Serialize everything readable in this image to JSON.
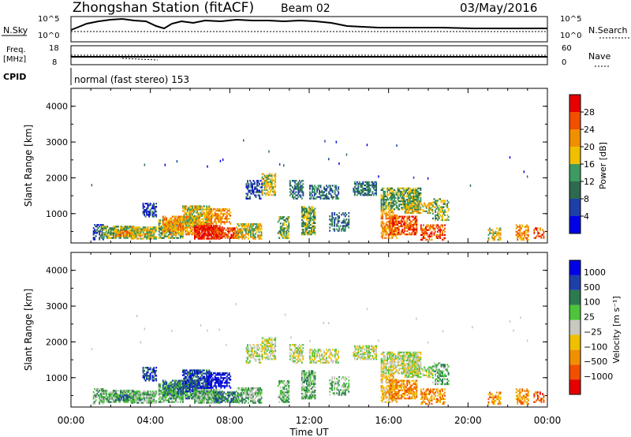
{
  "header": {
    "station": "Zhongshan Station (fitACF)",
    "beam": "Beam 02",
    "date": "03/May/2016"
  },
  "labels": {
    "nsky": "N.Sky",
    "nsearch": "N.Search",
    "freq_line1": "Freq.",
    "freq_line2": "[MHz]",
    "nave": "Nave",
    "cpid": "CPID",
    "cpid_value": "normal (fast stereo) 153",
    "nsky_top": "10^5",
    "nsky_bottom": "10^0",
    "freq_top": "18",
    "freq_bottom": "8",
    "nave_top": "60",
    "nave_bottom": "0"
  },
  "colors": {
    "power_scale": [
      "#0000e6",
      "#1f3fa8",
      "#2d6a4f",
      "#3d9a60",
      "#f0c000",
      "#f09000",
      "#f05000",
      "#e60000"
    ],
    "velocity_scale": [
      "#e60000",
      "#f05000",
      "#f09000",
      "#f0c000",
      "#c8c8c0",
      "#4dc43a",
      "#2d7a50",
      "#1f3fa8",
      "#0000e6"
    ]
  },
  "chart_data": [
    {
      "type": "heatmap",
      "name": "power",
      "ylabel": "Slant Range [km]",
      "yticks": [
        "1000",
        "2000",
        "3000",
        "4000"
      ],
      "ylim": [
        180,
        4500
      ],
      "xticks": [
        "00:00",
        "04:00",
        "08:00",
        "12:00",
        "16:00",
        "20:00",
        "00:00"
      ],
      "xlim_hours": [
        0,
        24
      ],
      "colorbar": {
        "label": "Power [dB]",
        "ticks": [
          "4",
          "8",
          "12",
          "16",
          "20",
          "24",
          "28"
        ],
        "range": [
          0,
          32
        ]
      }
    },
    {
      "type": "heatmap",
      "name": "velocity",
      "ylabel": "Slant Range [km]",
      "yticks": [
        "1000",
        "2000",
        "3000",
        "4000"
      ],
      "ylim": [
        180,
        4500
      ],
      "xticks": [
        "00:00",
        "04:00",
        "08:00",
        "12:00",
        "16:00",
        "20:00",
        "00:00"
      ],
      "xlabel": "Time UT",
      "xlim_hours": [
        0,
        24
      ],
      "colorbar": {
        "label": "Velocity [m s⁻¹]",
        "ticks": [
          "1000",
          "500",
          "100",
          "25",
          "−25",
          "−100",
          "−500",
          "−1000"
        ]
      }
    }
  ]
}
